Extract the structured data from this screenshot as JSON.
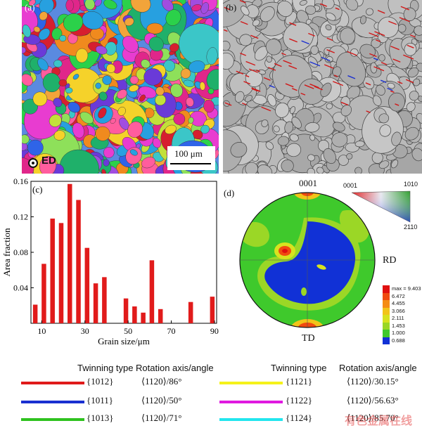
{
  "panels": {
    "a": {
      "label": "(a)",
      "scale_bar": "100 μm",
      "direction": "ED"
    },
    "b": {
      "label": "(b)"
    },
    "c": {
      "label": "(c)"
    },
    "d": {
      "label": "(d)",
      "pole_top": "0001",
      "pole_right": "RD",
      "pole_bottom": "TD",
      "ipf_key": {
        "corner_a": "0001",
        "corner_b": "1010",
        "corner_c": "2110"
      },
      "colorbar": {
        "labels": [
          "max = 9.403",
          "6.472",
          "4.455",
          "3.066",
          "2.111",
          "1.453",
          "1.000",
          "0.688"
        ],
        "colors": [
          "#e01010",
          "#f04a10",
          "#f58c14",
          "#f2c419",
          "#d8e21f",
          "#9bd726",
          "#3fc92c",
          "#1131d6"
        ]
      }
    }
  },
  "chart_data": {
    "type": "bar",
    "title": "",
    "xlabel": "Grain size/μm",
    "ylabel": "Area fraction",
    "xlim": [
      5,
      91
    ],
    "ylim": [
      0,
      0.16
    ],
    "xticks": [
      10,
      30,
      50,
      70,
      90
    ],
    "yticks": [
      0.04,
      0.08,
      0.12,
      0.16
    ],
    "ytick_labels": [
      "0.04",
      "0.08",
      "0.12",
      "0.16"
    ],
    "bar_color": "#e11b1b",
    "x": [
      7,
      11,
      15,
      19,
      23,
      27,
      31,
      35,
      39,
      49,
      53,
      57,
      61,
      65,
      79,
      89
    ],
    "values": [
      0.021,
      0.067,
      0.118,
      0.113,
      0.157,
      0.139,
      0.085,
      0.045,
      0.052,
      0.028,
      0.019,
      0.012,
      0.071,
      0.016,
      0.024,
      0.03
    ]
  },
  "legend": {
    "header_type": "Twinning type",
    "header_rot": "Rotation axis/angle",
    "left": [
      {
        "color": "#e01a1a",
        "type": "{1012}",
        "rot": "⟨1120⟩/86°"
      },
      {
        "color": "#1a2fd0",
        "type": "{1011}",
        "rot": "⟨1120⟩/50°"
      },
      {
        "color": "#2fc21f",
        "type": "{1013}",
        "rot": "⟨1120⟩/71°"
      }
    ],
    "right": [
      {
        "color": "#f5f21a",
        "type": "{1121}",
        "rot": "⟨1120⟩/30.15°"
      },
      {
        "color": "#e01ae0",
        "type": "{1122}",
        "rot": "⟨1120⟩/56.63°"
      },
      {
        "color": "#22e6ee",
        "type": "{1124}",
        "rot": "⟨1120⟩/85.70°"
      }
    ]
  },
  "watermark": "有色金属在线"
}
